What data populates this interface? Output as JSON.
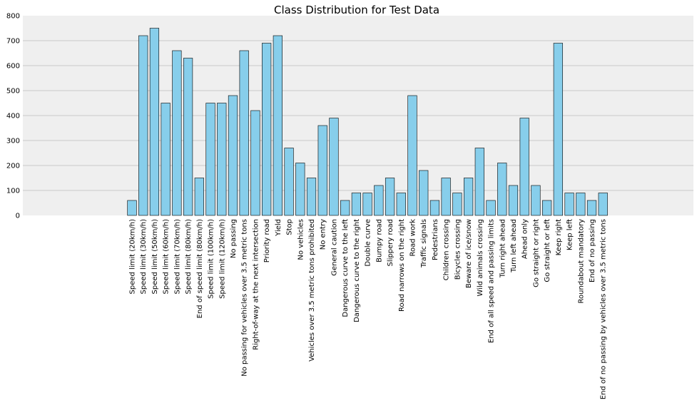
{
  "chart_data": {
    "type": "bar",
    "title": "Class Distribution for Test Data",
    "xlabel": "",
    "ylabel": "",
    "ylim": [
      0,
      800
    ],
    "yticks": [
      0,
      100,
      200,
      300,
      400,
      500,
      600,
      700,
      800
    ],
    "grid": "horizontal",
    "colors": {
      "bar_fill": "#87ceeb",
      "bar_edge": "#000000",
      "plot_background": "#efefef",
      "gridline": "#c8c8c8"
    },
    "categories": [
      "Speed limit (20km/h)",
      "Speed limit (30km/h)",
      "Speed limit (50km/h)",
      "Speed limit (60km/h)",
      "Speed limit (70km/h)",
      "Speed limit (80km/h)",
      "End of speed limit (80km/h)",
      "Speed limit (100km/h)",
      "Speed limit (120km/h)",
      "No passing",
      "No passing for vehicles over 3.5 metric tons",
      "Right-of-way at the next intersection",
      "Priority road",
      "Yield",
      "Stop",
      "No vehicles",
      "Vehicles over 3.5 metric tons prohibited",
      "No entry",
      "General caution",
      "Dangerous curve to the left",
      "Dangerous curve to the right",
      "Double curve",
      "Bumpy road",
      "Slippery road",
      "Road narrows on the right",
      "Road work",
      "Traffic signals",
      "Pedestrians",
      "Children crossing",
      "Bicycles crossing",
      "Beware of ice/snow",
      "Wild animals crossing",
      "End of all speed and passing limits",
      "Turn right ahead",
      "Turn left ahead",
      "Ahead only",
      "Go straight or right",
      "Go straight or left",
      "Keep right",
      "Keep left",
      "Roundabout mandatory",
      "End of no passing",
      "End of no passing by vehicles over 3.5 metric tons"
    ],
    "values": [
      60,
      720,
      750,
      450,
      660,
      630,
      150,
      450,
      450,
      480,
      660,
      420,
      690,
      720,
      270,
      210,
      150,
      360,
      390,
      60,
      90,
      90,
      120,
      150,
      90,
      480,
      180,
      60,
      150,
      90,
      150,
      270,
      60,
      210,
      120,
      390,
      120,
      60,
      690,
      90,
      90,
      60,
      90
    ]
  }
}
